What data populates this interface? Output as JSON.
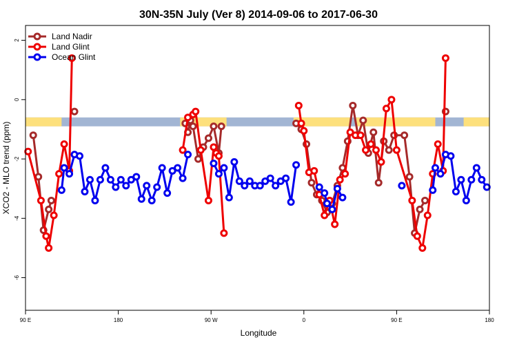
{
  "chart_data": {
    "type": "line",
    "title": "30N-35N July (Ver 8)   2014-09-06 to 2017-06-30",
    "xlabel": "Longitude",
    "ylabel": "XCO2 - MLO trend (ppm)",
    "xlim": [
      0,
      180
    ],
    "ylim": [
      -7.1,
      2.5
    ],
    "x_ticks": [
      {
        "value": 0,
        "label": "90 E"
      },
      {
        "value": 36,
        "label": "180"
      },
      {
        "value": 72,
        "label": "90 W"
      },
      {
        "value": 108,
        "label": "0"
      },
      {
        "value": 144,
        "label": "90 E"
      },
      {
        "value": 180,
        "label": "180"
      }
    ],
    "y_ticks": [
      {
        "value": 2,
        "label": "2"
      },
      {
        "value": 0,
        "label": "0"
      },
      {
        "value": -2,
        "label": "-2"
      },
      {
        "value": -4,
        "label": "-4"
      },
      {
        "value": -6,
        "label": "-6"
      }
    ],
    "grid": false,
    "legend_position": "top-left",
    "surface_band": {
      "y_top": -0.6,
      "y_bottom": -0.9,
      "ocean_color": "#a2b5d3",
      "land_color": "#fde07c",
      "land_ranges": [
        [
          0,
          14
        ],
        [
          60,
          78
        ],
        [
          104,
          126
        ],
        [
          128,
          159
        ],
        [
          170,
          180
        ]
      ]
    },
    "series": [
      {
        "name": "Land Nadir",
        "color": "#a52a2a",
        "segments": [
          [
            [
              3,
              -1.2
            ],
            [
              5,
              -2.6
            ],
            [
              7,
              -4.4
            ],
            [
              9,
              -3.7
            ],
            [
              10,
              -3.4
            ]
          ],
          [
            [
              19,
              -0.4
            ]
          ],
          [
            [
              62,
              -0.8
            ],
            [
              63,
              -1.1
            ],
            [
              64,
              -0.7
            ],
            [
              65,
              -0.9
            ],
            [
              67,
              -2.0
            ],
            [
              69,
              -1.6
            ],
            [
              71,
              -1.3
            ],
            [
              73,
              -0.9
            ],
            [
              75,
              -1.8
            ],
            [
              76,
              -0.9
            ]
          ],
          [
            [
              105,
              -0.8
            ],
            [
              107,
              -1.0
            ],
            [
              109,
              -1.5
            ],
            [
              111,
              -2.8
            ],
            [
              113,
              -3.2
            ],
            [
              115,
              -3.4
            ],
            [
              117,
              -3.8
            ],
            [
              119,
              -3.5
            ],
            [
              121,
              -2.9
            ],
            [
              123,
              -2.3
            ],
            [
              125,
              -1.4
            ],
            [
              127,
              -0.2
            ],
            [
              129,
              -1.2
            ],
            [
              131,
              -0.7
            ],
            [
              133,
              -1.8
            ],
            [
              135,
              -1.1
            ],
            [
              137,
              -2.8
            ],
            [
              139,
              -1.4
            ],
            [
              141,
              -1.7
            ],
            [
              143,
              -1.2
            ],
            [
              147,
              -1.2
            ],
            [
              149,
              -2.6
            ],
            [
              151,
              -4.5
            ],
            [
              153,
              -3.7
            ],
            [
              155,
              -3.4
            ]
          ],
          [
            [
              163,
              -0.4
            ]
          ]
        ]
      },
      {
        "name": "Land Glint",
        "color": "#ee0000",
        "segments": [
          [
            [
              1,
              -1.75
            ],
            [
              6,
              -3.4
            ],
            [
              8,
              -4.6
            ],
            [
              9,
              -5.0
            ],
            [
              11,
              -3.9
            ],
            [
              13,
              -2.5
            ],
            [
              15,
              -1.5
            ],
            [
              17,
              -2.4
            ],
            [
              18,
              1.4
            ]
          ],
          [
            [
              61,
              -1.7
            ],
            [
              63,
              -0.6
            ],
            [
              65,
              -0.5
            ],
            [
              66,
              -0.4
            ],
            [
              68,
              -1.7
            ],
            [
              71,
              -3.4
            ],
            [
              73,
              -1.6
            ],
            [
              74,
              -1.8
            ],
            [
              75,
              -1.9
            ],
            [
              77,
              -4.5
            ]
          ],
          [
            [
              106,
              -0.2
            ],
            [
              107,
              -0.8
            ],
            [
              108,
              -1.05
            ],
            [
              110,
              -2.45
            ],
            [
              112,
              -2.4
            ],
            [
              114,
              -3.2
            ],
            [
              116,
              -3.9
            ],
            [
              118,
              -3.4
            ],
            [
              120,
              -4.2
            ],
            [
              122,
              -2.7
            ],
            [
              124,
              -2.5
            ],
            [
              126,
              -1.1
            ],
            [
              128,
              -1.2
            ],
            [
              130,
              -1.2
            ],
            [
              132,
              -1.7
            ],
            [
              134,
              -1.5
            ],
            [
              136,
              -1.7
            ],
            [
              138,
              -2.1
            ],
            [
              140,
              -0.3
            ],
            [
              142,
              0.0
            ],
            [
              144,
              -1.7
            ],
            [
              150,
              -3.4
            ],
            [
              152,
              -4.6
            ],
            [
              154,
              -5.0
            ],
            [
              156,
              -3.9
            ],
            [
              158,
              -2.5
            ],
            [
              160,
              -1.5
            ],
            [
              162,
              -2.4
            ],
            [
              163,
              1.4
            ]
          ]
        ]
      },
      {
        "name": "Ocean Glint",
        "color": "#0000ee",
        "segments": [
          [
            [
              14,
              -3.05
            ],
            [
              15,
              -2.3
            ],
            [
              17,
              -2.5
            ],
            [
              19,
              -1.85
            ],
            [
              21,
              -1.9
            ],
            [
              23,
              -3.1
            ],
            [
              25,
              -2.7
            ],
            [
              27,
              -3.4
            ],
            [
              29,
              -2.7
            ],
            [
              31,
              -2.3
            ],
            [
              33,
              -2.7
            ],
            [
              35,
              -2.95
            ],
            [
              37,
              -2.7
            ],
            [
              39,
              -2.9
            ],
            [
              41,
              -2.7
            ],
            [
              43,
              -2.6
            ],
            [
              45,
              -3.35
            ],
            [
              47,
              -2.9
            ],
            [
              49,
              -3.4
            ],
            [
              51,
              -2.95
            ],
            [
              53,
              -2.3
            ],
            [
              55,
              -3.15
            ],
            [
              57,
              -2.4
            ],
            [
              59,
              -2.3
            ],
            [
              61,
              -2.65
            ],
            [
              63,
              -1.85
            ]
          ],
          [
            [
              73,
              -2.15
            ],
            [
              75,
              -2.5
            ],
            [
              77,
              -2.3
            ],
            [
              79,
              -3.3
            ],
            [
              81,
              -2.1
            ],
            [
              83,
              -2.75
            ],
            [
              85,
              -2.9
            ],
            [
              87,
              -2.75
            ],
            [
              89,
              -2.9
            ],
            [
              91,
              -2.9
            ],
            [
              93,
              -2.75
            ],
            [
              95,
              -2.65
            ],
            [
              97,
              -2.9
            ],
            [
              99,
              -2.75
            ],
            [
              101,
              -2.65
            ],
            [
              103,
              -3.45
            ],
            [
              105,
              -2.2
            ]
          ],
          [
            [
              114,
              -2.95
            ],
            [
              116,
              -3.15
            ],
            [
              117,
              -3.5
            ],
            [
              119,
              -3.7
            ],
            [
              121,
              -3.0
            ],
            [
              123,
              -3.3
            ]
          ],
          [
            [
              146,
              -2.9
            ]
          ],
          [
            [
              158,
              -3.05
            ],
            [
              159,
              -2.3
            ],
            [
              161,
              -2.5
            ],
            [
              163,
              -1.85
            ],
            [
              165,
              -1.9
            ],
            [
              167,
              -3.1
            ],
            [
              169,
              -2.7
            ],
            [
              171,
              -3.4
            ],
            [
              173,
              -2.7
            ],
            [
              175,
              -2.3
            ],
            [
              177,
              -2.7
            ],
            [
              179,
              -2.95
            ]
          ]
        ]
      }
    ]
  }
}
